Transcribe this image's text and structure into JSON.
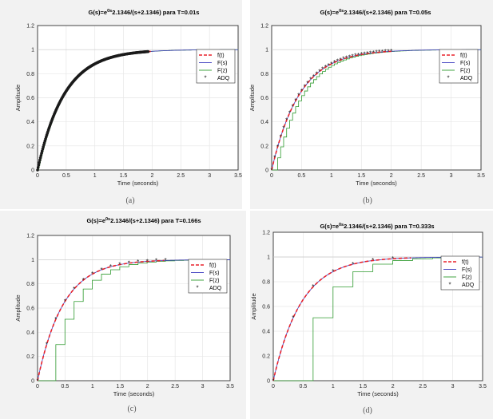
{
  "chart_data": [
    {
      "type": "line",
      "title_prefix": "G(s)=e",
      "title_sup": "0s",
      "title_suffix": "2.1346/(s+2.1346)  para T=0.01s",
      "caption": "(a)",
      "T": 0.01,
      "xlabel": "Time (seconds)",
      "ylabel": "Amplitude",
      "xlim": [
        0,
        3.5
      ],
      "ylim": [
        0,
        1.2
      ],
      "xticks": [
        "0",
        "0.5",
        "1",
        "1.5",
        "2",
        "2.5",
        "3",
        "3.5"
      ],
      "yticks": [
        "0",
        "0.2",
        "0.4",
        "0.6",
        "0.8",
        "1",
        "1.2"
      ],
      "grid": true,
      "legend_placement": "top-right",
      "series": [
        {
          "name": "f(t)",
          "color": "#e8202a",
          "style": "dashed",
          "fn": "1-exp(-2.1346t)",
          "x_range": [
            0,
            2
          ]
        },
        {
          "name": "F(s)",
          "color": "#3b3bbf",
          "style": "solid",
          "fn": "1-exp(-2.1346t)",
          "x_range": [
            0,
            3.5
          ]
        },
        {
          "name": "F(z)",
          "color": "#2e9a2e",
          "style": "step",
          "fn": "1-exp(-2.1346(k-1)T)",
          "x_range": [
            0,
            3.5
          ]
        },
        {
          "name": "ADQ",
          "color": "#000000",
          "style": "markers",
          "fn": "1-exp(-2.1346kT)",
          "x_range": [
            0,
            1.93
          ]
        }
      ]
    },
    {
      "type": "line",
      "title_prefix": "G(s)=e",
      "title_sup": "0s",
      "title_suffix": "2.1346/(s+2.1346)  para T=0.05s",
      "caption": "(b)",
      "T": 0.05,
      "xlabel": "Time (seconds)",
      "ylabel": "Amplitude",
      "xlim": [
        0,
        3.5
      ],
      "ylim": [
        0,
        1.2
      ],
      "xticks": [
        "0",
        "0.5",
        "1",
        "1.5",
        "2",
        "2.5",
        "3",
        "3.5"
      ],
      "yticks": [
        "0",
        "0.2",
        "0.4",
        "0.6",
        "0.8",
        "1",
        "1.2"
      ],
      "grid": true,
      "legend_placement": "top-right",
      "series": [
        {
          "name": "f(t)",
          "color": "#e8202a",
          "style": "dashed",
          "fn": "1-exp(-2.1346t)",
          "x_range": [
            0,
            2
          ]
        },
        {
          "name": "F(s)",
          "color": "#3b3bbf",
          "style": "solid",
          "fn": "1-exp(-2.1346t)",
          "x_range": [
            0,
            3.5
          ]
        },
        {
          "name": "F(z)",
          "color": "#2e9a2e",
          "style": "step",
          "fn": "1-exp(-2.1346(k-1)T)",
          "x_range": [
            0,
            3.5
          ]
        },
        {
          "name": "ADQ",
          "color": "#000000",
          "style": "markers",
          "fn": "1-exp(-2.1346kT)",
          "x_range": [
            0,
            2.0
          ]
        }
      ]
    },
    {
      "type": "line",
      "title_prefix": "G(s)=e",
      "title_sup": "0s",
      "title_suffix": "2.1346/(s+2.1346)  para T=0.166s",
      "caption": "(c)",
      "T": 0.166,
      "xlabel": "Time (seconds)",
      "ylabel": "Amplitude",
      "xlim": [
        0,
        3.5
      ],
      "ylim": [
        0,
        1.2
      ],
      "xticks": [
        "0",
        "0.5",
        "1",
        "1.5",
        "2",
        "2.5",
        "3",
        "3.5"
      ],
      "yticks": [
        "0",
        "0.2",
        "0.4",
        "0.6",
        "0.8",
        "1",
        "1.2"
      ],
      "grid": true,
      "legend_placement": "top-right",
      "series": [
        {
          "name": "f(t)",
          "color": "#e8202a",
          "style": "dashed",
          "fn": "1-exp(-2.1346t)",
          "x_range": [
            0,
            2.3
          ]
        },
        {
          "name": "F(s)",
          "color": "#3b3bbf",
          "style": "solid",
          "fn": "1-exp(-2.1346t)",
          "x_range": [
            0,
            3.5
          ]
        },
        {
          "name": "F(z)",
          "color": "#2e9a2e",
          "style": "step",
          "fn": "1-exp(-2.1346(k-1)T)",
          "x_range": [
            0,
            3.5
          ]
        },
        {
          "name": "ADQ",
          "color": "#000000",
          "style": "markers",
          "fn": "1-exp(-2.1346kT)",
          "x_range": [
            0,
            2.33
          ]
        }
      ]
    },
    {
      "type": "line",
      "title_prefix": "G(s)=e",
      "title_sup": "0s",
      "title_suffix": "2.1346/(s+2.1346)  para T=0.333s",
      "caption": "(d)",
      "T": 0.333,
      "xlabel": "Time (seconds)",
      "ylabel": "Amplitude",
      "xlim": [
        0,
        3.5
      ],
      "ylim": [
        0,
        1.2
      ],
      "xticks": [
        "0",
        "0.5",
        "1",
        "1.5",
        "2",
        "2.5",
        "3",
        "3.5"
      ],
      "yticks": [
        "0",
        "0.2",
        "0.4",
        "0.6",
        "0.8",
        "1",
        "1.2"
      ],
      "grid": true,
      "legend_placement": "top-right",
      "series": [
        {
          "name": "f(t)",
          "color": "#e8202a",
          "style": "dashed",
          "fn": "1-exp(-2.1346t)",
          "x_range": [
            0,
            2.3
          ]
        },
        {
          "name": "F(s)",
          "color": "#3b3bbf",
          "style": "solid",
          "fn": "1-exp(-2.1346t)",
          "x_range": [
            0,
            3.5
          ]
        },
        {
          "name": "F(z)",
          "color": "#2e9a2e",
          "style": "step",
          "fn": "1-exp(-2.1346(k-1)T)",
          "x_range": [
            0,
            3.5
          ]
        },
        {
          "name": "ADQ",
          "color": "#000000",
          "style": "markers",
          "fn": "1-exp(-2.1346kT)",
          "x_range": [
            0,
            2.33
          ]
        }
      ]
    }
  ]
}
